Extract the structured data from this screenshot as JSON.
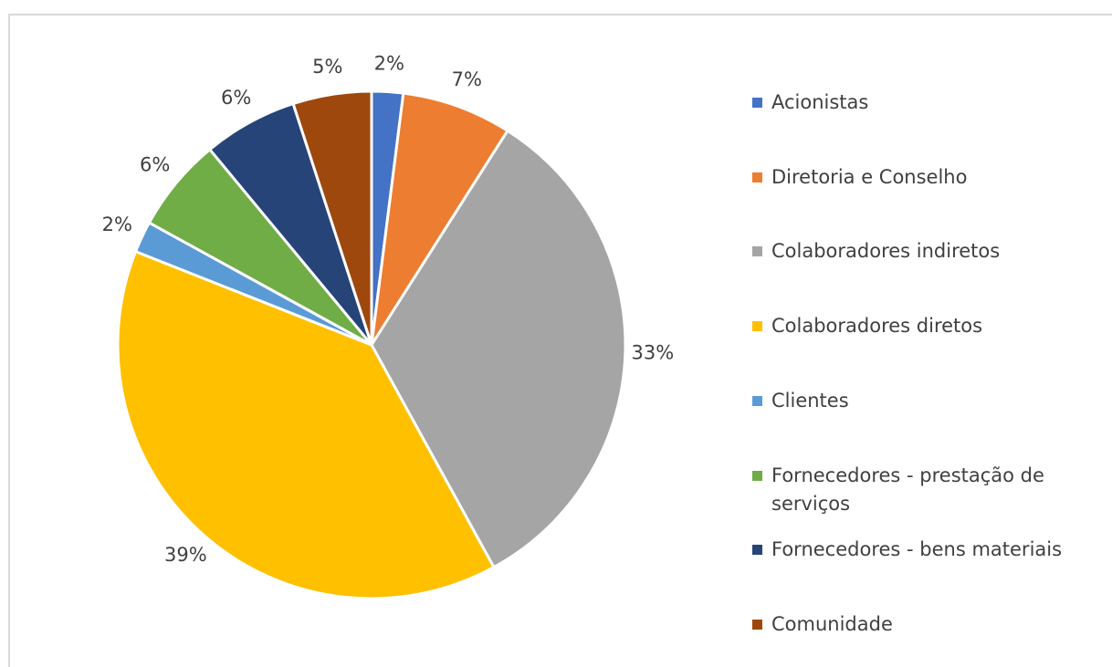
{
  "chart_data": {
    "type": "pie",
    "categories": [
      "Acionistas",
      "Diretoria e Conselho",
      "Colaboradores indiretos",
      "Colaboradores diretos",
      "Clientes",
      "Fornecedores - prestação de serviços",
      "Fornecedores - bens materiais",
      "Comunidade"
    ],
    "values": [
      2,
      7,
      33,
      39,
      2,
      6,
      6,
      5
    ],
    "value_labels": [
      "2%",
      "7%",
      "33%",
      "39%",
      "2%",
      "6%",
      "6%",
      "5%"
    ],
    "colors": [
      "#4472c4",
      "#ed7d31",
      "#a5a5a5",
      "#ffc000",
      "#5b9bd5",
      "#70ad47",
      "#264478",
      "#9e480e"
    ],
    "legend": "right"
  }
}
